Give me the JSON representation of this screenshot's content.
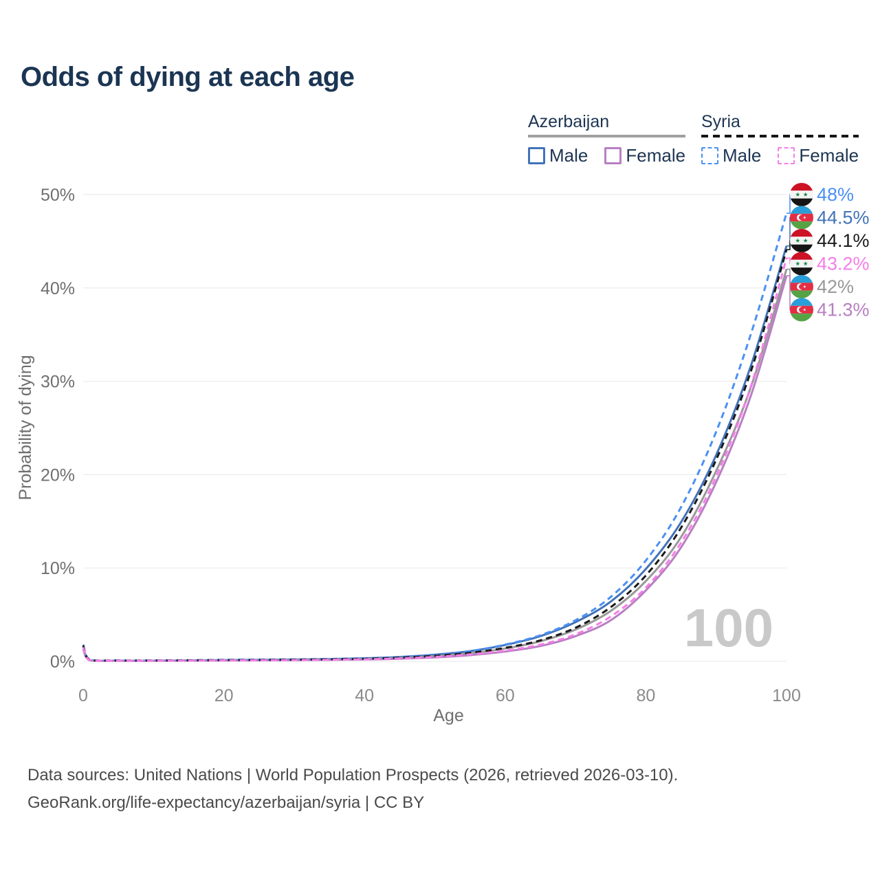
{
  "header": {
    "title": "Odds of dying at each age"
  },
  "legend": {
    "groups": [
      {
        "label": "Azerbaijan",
        "line_style": "solid",
        "underline_color": "#a0a0a0",
        "items": [
          {
            "label": "Male",
            "color": "#4273b8",
            "dashed": false
          },
          {
            "label": "Female",
            "color": "#b87fc2",
            "dashed": false
          }
        ]
      },
      {
        "label": "Syria",
        "line_style": "dashed",
        "underline_color": "#161616",
        "items": [
          {
            "label": "Male",
            "color": "#4a90f4",
            "dashed": true
          },
          {
            "label": "Female",
            "color": "#f57ee8",
            "dashed": true
          }
        ]
      }
    ]
  },
  "watermark": {
    "text": "100",
    "color": "#c9c9c9"
  },
  "footer": {
    "line1": "Data sources: United Nations | World Population Prospects (2026, retrieved 2026-03-10).",
    "line2": "GeoRank.org/life-expectancy/azerbaijan/syria | CC BY"
  },
  "chart_data": {
    "type": "line",
    "title": "Odds of dying at each age",
    "xlabel": "Age",
    "ylabel": "Probability of dying",
    "xlim": [
      0,
      100
    ],
    "ylim": [
      0,
      50
    ],
    "x_ticks": [
      0,
      20,
      40,
      60,
      80,
      100
    ],
    "y_ticks": [
      0,
      10,
      20,
      30,
      40,
      50
    ],
    "y_tick_suffix": "%",
    "grid": "horizontal",
    "legend_position": "top-right",
    "ages": [
      0,
      1,
      5,
      10,
      15,
      20,
      25,
      30,
      35,
      40,
      45,
      50,
      55,
      60,
      65,
      70,
      75,
      80,
      85,
      90,
      95,
      100
    ],
    "series": [
      {
        "name": "Syria Male",
        "country": "Syria",
        "sex": "male",
        "flag": "syria",
        "color": "#4a90f4",
        "dashed": true,
        "end_label": "48%",
        "values": [
          1.8,
          0.15,
          0.1,
          0.1,
          0.12,
          0.16,
          0.19,
          0.22,
          0.26,
          0.33,
          0.48,
          0.72,
          1.1,
          1.8,
          2.8,
          4.4,
          6.9,
          10.8,
          16.5,
          24.6,
          35.2,
          48
        ]
      },
      {
        "name": "Azerbaijan Male",
        "country": "Azerbaijan",
        "sex": "male",
        "flag": "azerbaijan",
        "color": "#4273b8",
        "dashed": false,
        "end_label": "44.5%",
        "values": [
          1.6,
          0.12,
          0.08,
          0.08,
          0.1,
          0.14,
          0.17,
          0.2,
          0.25,
          0.33,
          0.47,
          0.72,
          1.1,
          1.75,
          2.7,
          4.2,
          6.4,
          9.9,
          14.9,
          22.1,
          31.8,
          44.5
        ]
      },
      {
        "name": "Syria",
        "country": "Syria",
        "sex": "both",
        "flag": "syria",
        "color": "#1a1a1a",
        "dashed": true,
        "end_label": "44.1%",
        "values": [
          1.7,
          0.13,
          0.09,
          0.09,
          0.11,
          0.13,
          0.15,
          0.18,
          0.22,
          0.28,
          0.4,
          0.6,
          0.92,
          1.45,
          2.25,
          3.6,
          5.8,
          9.2,
          14.3,
          21.6,
          31.2,
          44.1
        ]
      },
      {
        "name": "Syria Female",
        "country": "Syria",
        "sex": "female",
        "flag": "syria",
        "color": "#f57ee8",
        "dashed": true,
        "end_label": "43.2%",
        "values": [
          1.5,
          0.11,
          0.07,
          0.07,
          0.08,
          0.1,
          0.12,
          0.14,
          0.17,
          0.22,
          0.32,
          0.48,
          0.75,
          1.15,
          1.8,
          2.9,
          4.8,
          7.9,
          12.7,
          19.8,
          29.6,
          43.2
        ]
      },
      {
        "name": "Azerbaijan",
        "country": "Azerbaijan",
        "sex": "both",
        "flag": "azerbaijan",
        "color": "#999999",
        "dashed": false,
        "end_label": "42%",
        "values": [
          1.45,
          0.1,
          0.07,
          0.07,
          0.09,
          0.11,
          0.13,
          0.16,
          0.2,
          0.26,
          0.37,
          0.56,
          0.87,
          1.38,
          2.15,
          3.4,
          5.4,
          8.6,
          13.3,
          20.4,
          29.5,
          42
        ]
      },
      {
        "name": "Azerbaijan Female",
        "country": "Azerbaijan",
        "sex": "female",
        "flag": "azerbaijan",
        "color": "#b87fc2",
        "dashed": false,
        "end_label": "41.3%",
        "values": [
          1.3,
          0.09,
          0.06,
          0.06,
          0.07,
          0.09,
          0.11,
          0.13,
          0.16,
          0.2,
          0.28,
          0.42,
          0.66,
          1.05,
          1.65,
          2.7,
          4.4,
          7.6,
          12.2,
          19.2,
          28.6,
          41.3
        ]
      }
    ]
  }
}
